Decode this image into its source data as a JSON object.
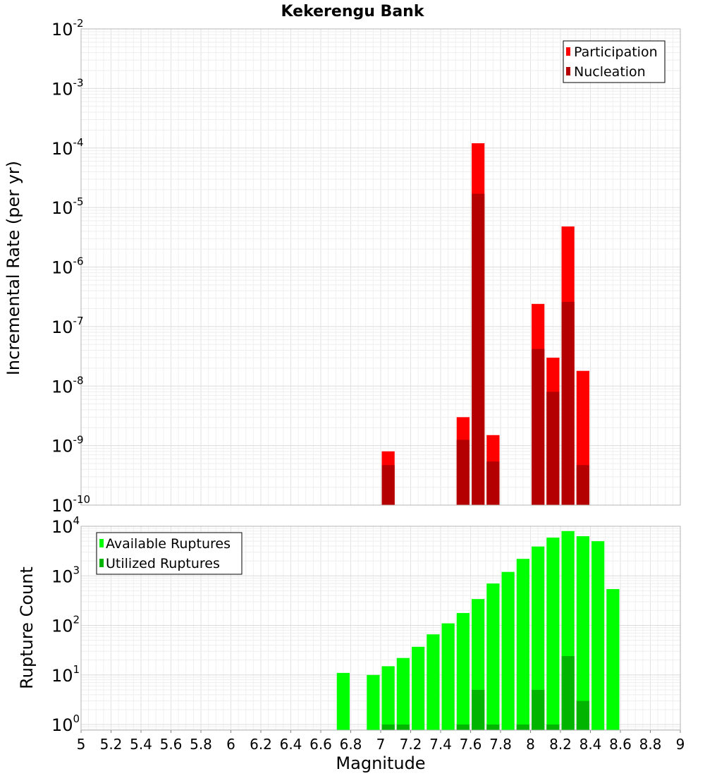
{
  "chart_data": [
    {
      "type": "bar",
      "title": "Kekerengu Bank",
      "xlabel": "",
      "ylabel": "Incremental Rate (per yr)",
      "yscale": "log",
      "ylim": [
        1e-10,
        0.01
      ],
      "xlim": [
        5,
        9
      ],
      "bar_width": 0.1,
      "grid": true,
      "legend_position": "top-right",
      "y_ticks": [
        {
          "base": "10",
          "exp": "-10",
          "value": 1e-10
        },
        {
          "base": "10",
          "exp": "-9",
          "value": 1e-09
        },
        {
          "base": "10",
          "exp": "-8",
          "value": 1e-08
        },
        {
          "base": "10",
          "exp": "-7",
          "value": 1e-07
        },
        {
          "base": "10",
          "exp": "-6",
          "value": 1e-06
        },
        {
          "base": "10",
          "exp": "-5",
          "value": 1e-05
        },
        {
          "base": "10",
          "exp": "-4",
          "value": 0.0001
        },
        {
          "base": "10",
          "exp": "-3",
          "value": 0.001
        },
        {
          "base": "10",
          "exp": "-2",
          "value": 0.01
        }
      ],
      "series": [
        {
          "name": "Participation",
          "color": "#ff0000",
          "points": [
            [
              7.05,
              8e-10
            ],
            [
              7.55,
              3e-09
            ],
            [
              7.65,
              0.00012
            ],
            [
              7.75,
              1.5e-09
            ],
            [
              8.05,
              2.4e-07
            ],
            [
              8.15,
              3e-08
            ],
            [
              8.25,
              4.8e-06
            ],
            [
              8.35,
              1.8e-08
            ]
          ]
        },
        {
          "name": "Nucleation",
          "color": "#b40000",
          "points": [
            [
              7.05,
              4.7e-10
            ],
            [
              7.55,
              1.25e-09
            ],
            [
              7.65,
              1.7e-05
            ],
            [
              7.75,
              5.4e-10
            ],
            [
              8.05,
              4.2e-08
            ],
            [
              8.15,
              8e-09
            ],
            [
              8.25,
              2.6e-07
            ],
            [
              8.35,
              4.7e-10
            ]
          ]
        }
      ]
    },
    {
      "type": "bar",
      "title": "",
      "xlabel": "Magnitude",
      "ylabel": "Rupture Count",
      "yscale": "log",
      "ylim": [
        0.77,
        10000
      ],
      "xlim": [
        5,
        9
      ],
      "bar_width": 0.1,
      "grid": true,
      "legend_position": "top-left",
      "x_ticks": [
        "5",
        "5.2",
        "5.4",
        "5.6",
        "5.8",
        "6",
        "6.2",
        "6.4",
        "6.6",
        "6.8",
        "7",
        "7.2",
        "7.4",
        "7.6",
        "7.8",
        "8",
        "8.2",
        "8.4",
        "8.6",
        "8.8",
        "9"
      ],
      "y_ticks": [
        {
          "base": "10",
          "exp": "0",
          "value": 1
        },
        {
          "base": "10",
          "exp": "1",
          "value": 10
        },
        {
          "base": "10",
          "exp": "2",
          "value": 100
        },
        {
          "base": "10",
          "exp": "3",
          "value": 1000
        },
        {
          "base": "10",
          "exp": "4",
          "value": 10000
        }
      ],
      "series": [
        {
          "name": "Available Ruptures",
          "color": "#00ff00",
          "points": [
            [
              6.75,
              11
            ],
            [
              6.95,
              10
            ],
            [
              7.05,
              15
            ],
            [
              7.15,
              22
            ],
            [
              7.25,
              37
            ],
            [
              7.35,
              66
            ],
            [
              7.45,
              110
            ],
            [
              7.55,
              178
            ],
            [
              7.65,
              340
            ],
            [
              7.75,
              700
            ],
            [
              7.85,
              1200
            ],
            [
              7.95,
              2200
            ],
            [
              8.05,
              3900
            ],
            [
              8.15,
              5900
            ],
            [
              8.25,
              8000
            ],
            [
              8.35,
              6300
            ],
            [
              8.45,
              5000
            ],
            [
              8.55,
              540
            ]
          ]
        },
        {
          "name": "Utilized Ruptures",
          "color": "#00b400",
          "points": [
            [
              7.05,
              1
            ],
            [
              7.15,
              1
            ],
            [
              7.55,
              1
            ],
            [
              7.65,
              5
            ],
            [
              7.75,
              1
            ],
            [
              7.95,
              1
            ],
            [
              8.05,
              5
            ],
            [
              8.15,
              1
            ],
            [
              8.25,
              24
            ],
            [
              8.35,
              3
            ]
          ]
        }
      ]
    }
  ]
}
